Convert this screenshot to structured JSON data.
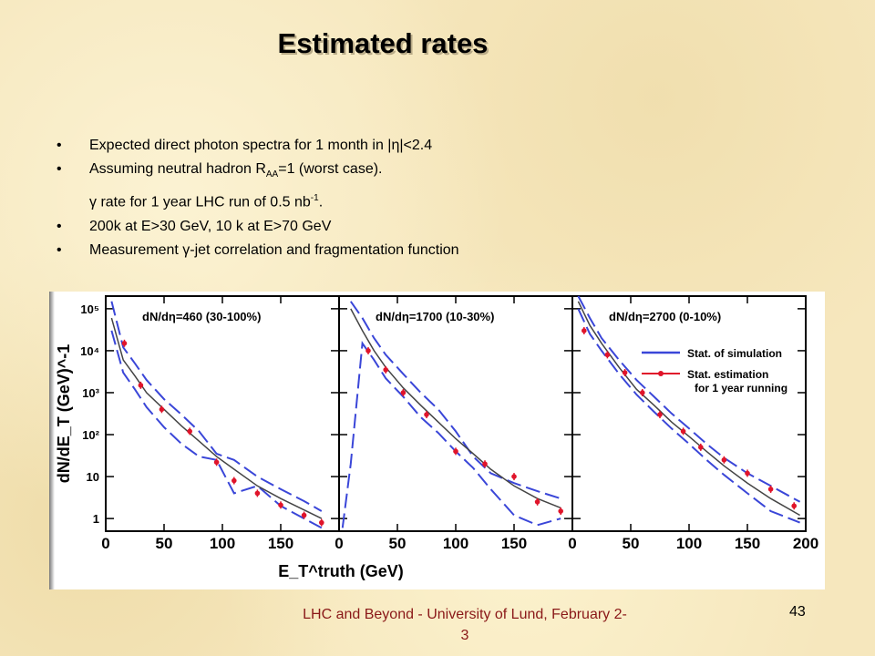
{
  "slide": {
    "title": "Estimated rates",
    "bullets": [
      {
        "bullet": "•",
        "text": "Expected direct photon spectra for 1 month in  |η|<2.4"
      },
      {
        "bullet": "•",
        "pre": "Assuming neutral hadron R",
        "sub": "AA",
        "post": "=1  (worst case)."
      },
      {
        "bullet": "",
        "pre": "γ rate for 1 year LHC run of 0.5 nb",
        "sup": "-1",
        "post": "."
      },
      {
        "bullet": "•",
        "text": "200k at E>30 GeV, 10 k at E>70 GeV"
      },
      {
        "bullet": "•",
        "text": "Measurement γ-jet correlation and fragmentation function"
      }
    ],
    "footer": "LHC and Beyond - University of Lund, February 2-3",
    "page_number": "43"
  },
  "chart_data": {
    "type": "line",
    "xlabel": "E_T^truth (GeV)",
    "ylabel": "dN/dE_T (GeV)^-1",
    "yscale": "log",
    "ylim": [
      0.5,
      200000
    ],
    "yticks": [
      "1",
      "10",
      "10²",
      "10³",
      "10⁴",
      "10⁵"
    ],
    "legend": {
      "placement": "right panel, middle",
      "entries": [
        "Stat. of simulation",
        "Stat. estimation for 1 year running"
      ]
    },
    "colors": {
      "simulation": "#3a46d8",
      "estimation": "#e0142a",
      "central": "#444444"
    },
    "panels": [
      {
        "label": "dN/dη=460 (30-100%)",
        "xlim": [
          0,
          200
        ],
        "xticks": [
          "0",
          "50",
          "100",
          "150"
        ],
        "central": {
          "x": [
            5,
            15,
            25,
            35,
            50,
            65,
            80,
            95,
            110,
            130,
            150,
            170,
            185
          ],
          "y": [
            60000,
            6000,
            2500,
            1000,
            400,
            160,
            70,
            30,
            15,
            6,
            3,
            1.6,
            1
          ]
        },
        "upper": {
          "x": [
            5,
            15,
            25,
            35,
            50,
            65,
            80,
            95,
            110,
            130,
            150,
            170,
            185
          ],
          "y": [
            150000,
            12000,
            5000,
            2000,
            700,
            300,
            120,
            35,
            25,
            10,
            5,
            2.6,
            1.5
          ]
        },
        "lower": {
          "x": [
            5,
            15,
            25,
            35,
            50,
            65,
            80,
            95,
            110,
            130,
            150,
            170,
            185
          ],
          "y": [
            30000,
            3000,
            1200,
            450,
            150,
            60,
            30,
            25,
            4,
            6,
            2,
            1,
            0.6
          ]
        },
        "points": {
          "x": [
            16,
            30,
            48,
            72,
            95,
            110,
            130,
            150,
            170,
            185
          ],
          "y": [
            15000,
            1500,
            400,
            120,
            22,
            8,
            4,
            2.1,
            1.2,
            0.8
          ]
        }
      },
      {
        "label": "dN/dη=1700 (10-30%)",
        "xlim": [
          0,
          200
        ],
        "xticks": [
          "0",
          "50",
          "100",
          "150"
        ],
        "central": {
          "x": [
            10,
            20,
            30,
            40,
            55,
            70,
            85,
            100,
            115,
            130,
            150,
            170,
            190
          ],
          "y": [
            100000,
            30000,
            10000,
            4000,
            1300,
            500,
            200,
            80,
            35,
            15,
            6,
            3,
            1.8
          ]
        },
        "upper": {
          "x": [
            10,
            20,
            30,
            40,
            55,
            70,
            85,
            100,
            115,
            130,
            150,
            170,
            190
          ],
          "y": [
            150000,
            60000,
            20000,
            8000,
            2800,
            1000,
            400,
            120,
            30,
            12,
            7,
            4.5,
            3
          ]
        },
        "lower": {
          "x": [
            3,
            10,
            20,
            30,
            40,
            55,
            70,
            85,
            100,
            115,
            130,
            150,
            170,
            190
          ],
          "y": [
            0.6,
            20,
            15000,
            6000,
            2200,
            800,
            260,
            110,
            40,
            16,
            5,
            1.2,
            0.7,
            1
          ]
        },
        "points": {
          "x": [
            25,
            40,
            55,
            75,
            100,
            125,
            150,
            170,
            190
          ],
          "y": [
            10000,
            3500,
            1000,
            300,
            40,
            20,
            10,
            2.5,
            1.5
          ]
        }
      },
      {
        "label": "dN/dη=2700 (0-10%)",
        "xlim": [
          0,
          200
        ],
        "xticks": [
          "0",
          "50",
          "100",
          "150",
          "200"
        ],
        "central": {
          "x": [
            5,
            15,
            25,
            40,
            55,
            70,
            85,
            100,
            115,
            130,
            150,
            170,
            195
          ],
          "y": [
            150000,
            40000,
            15000,
            4000,
            1200,
            500,
            200,
            90,
            40,
            18,
            7,
            3,
            1.2
          ]
        },
        "upper": {
          "x": [
            5,
            15,
            25,
            40,
            55,
            70,
            85,
            100,
            115,
            130,
            150,
            170,
            195
          ],
          "y": [
            200000,
            60000,
            20000,
            6000,
            2000,
            800,
            320,
            140,
            60,
            28,
            12,
            6,
            2.5
          ]
        },
        "lower": {
          "x": [
            5,
            15,
            25,
            40,
            55,
            70,
            85,
            100,
            115,
            130,
            150,
            170,
            195
          ],
          "y": [
            100000,
            25000,
            10000,
            2800,
            900,
            350,
            140,
            60,
            25,
            11,
            4,
            1.5,
            0.8
          ]
        },
        "points": {
          "x": [
            10,
            30,
            45,
            60,
            75,
            95,
            110,
            130,
            150,
            170,
            190
          ],
          "y": [
            30000,
            8000,
            3000,
            1000,
            300,
            120,
            50,
            25,
            12,
            5,
            2
          ]
        }
      }
    ]
  }
}
